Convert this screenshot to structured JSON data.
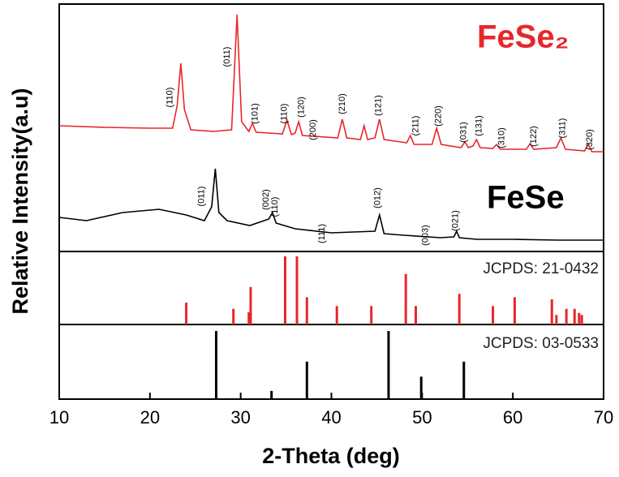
{
  "chart_data": [
    {
      "type": "line",
      "ylabel": "Relative Intensity(a.u)",
      "xlim": [
        10,
        70
      ],
      "ylim": [
        0,
        305
      ],
      "series": [
        {
          "name": "FeSe₂",
          "color": "#e8262a",
          "x": [
            10,
            15,
            20,
            22.5,
            23.0,
            23.4,
            23.8,
            24.5,
            27,
            29.0,
            29.6,
            30.1,
            30.9,
            31.3,
            31.7,
            34.6,
            35.1,
            35.6,
            36.0,
            36.4,
            36.8,
            40.7,
            41.2,
            41.7,
            43.2,
            43.6,
            44.0,
            44.8,
            45.3,
            45.8,
            48.3,
            48.7,
            49.1,
            51.1,
            51.6,
            52.1,
            54.3,
            54.7,
            55.1,
            55.6,
            56.0,
            56.4,
            57.8,
            58.2,
            58.6,
            61.5,
            61.9,
            62.3,
            64.8,
            65.3,
            65.8,
            67.9,
            68.3,
            68.7,
            70
          ],
          "values": [
            155,
            153,
            152,
            152,
            180,
            232,
            175,
            150,
            148,
            150,
            292,
            160,
            148,
            158,
            147,
            145,
            162,
            144,
            146,
            160,
            143,
            140,
            163,
            140,
            138,
            155,
            138,
            140,
            163,
            138,
            134,
            143,
            132,
            132,
            152,
            132,
            128,
            135,
            128,
            130,
            138,
            128,
            127,
            132,
            126,
            126,
            133,
            126,
            128,
            140,
            126,
            124,
            132,
            123,
            123
          ]
        },
        {
          "name": "FeSe",
          "color": "#000000",
          "x": [
            10,
            13,
            17,
            21,
            24,
            26,
            26.8,
            27.2,
            27.6,
            28.5,
            31,
            33.1,
            33.5,
            33.9,
            36,
            40,
            44.8,
            45.3,
            45.8,
            48,
            52,
            53.5,
            53.8,
            54.1,
            56,
            60,
            65,
            70
          ],
          "values": [
            42,
            38,
            48,
            52,
            45,
            38,
            55,
            102,
            48,
            38,
            32,
            40,
            48,
            35,
            28,
            23,
            25,
            45,
            22,
            20,
            17,
            18,
            25,
            17,
            15,
            15,
            14,
            14
          ]
        }
      ],
      "annotations": [
        {
          "text": "(110)",
          "x": 22.2,
          "y": 190
        },
        {
          "text": "(011)",
          "x": 28.5,
          "y": 240
        },
        {
          "text": "(101)",
          "x": 31.6,
          "y": 170
        },
        {
          "text": "(110)",
          "x": 34.8,
          "y": 170
        },
        {
          "text": "(120)",
          "x": 36.7,
          "y": 178
        },
        {
          "text": "(200)",
          "x": 38.0,
          "y": 150
        },
        {
          "text": "(210)",
          "x": 41.2,
          "y": 182
        },
        {
          "text": "(121)",
          "x": 45.2,
          "y": 180
        },
        {
          "text": "(211)",
          "x": 49.3,
          "y": 155
        },
        {
          "text": "(220)",
          "x": 51.8,
          "y": 167
        },
        {
          "text": "(031)",
          "x": 54.6,
          "y": 147
        },
        {
          "text": "(131)",
          "x": 56.3,
          "y": 155
        },
        {
          "text": "(310)",
          "x": 58.8,
          "y": 140
        },
        {
          "text": "(122)",
          "x": 62.3,
          "y": 142
        },
        {
          "text": "(311)",
          "x": 65.5,
          "y": 152
        },
        {
          "text": "(320)",
          "x": 68.5,
          "y": 138
        },
        {
          "text": "(011)",
          "x": 25.7,
          "y": 68
        },
        {
          "text": "(002)",
          "x": 32.8,
          "y": 64
        },
        {
          "text": "(110)",
          "x": 33.8,
          "y": 55
        },
        {
          "text": "(111)",
          "x": 39.0,
          "y": 22
        },
        {
          "text": "(012)",
          "x": 45.1,
          "y": 66
        },
        {
          "text": "(003)",
          "x": 50.4,
          "y": 20
        },
        {
          "text": "(021)",
          "x": 53.7,
          "y": 38
        }
      ]
    },
    {
      "type": "stem",
      "name": "JCPDS: 21-0432",
      "color": "#e8262a",
      "xlim": [
        10,
        70
      ],
      "ylim": [
        0,
        100
      ],
      "x": [
        24.0,
        29.2,
        30.9,
        31.1,
        34.9,
        36.2,
        37.3,
        40.6,
        44.4,
        48.2,
        49.3,
        54.1,
        57.8,
        60.2,
        64.3,
        64.8,
        65.9,
        66.8,
        67.3,
        67.6
      ],
      "values": [
        32,
        23,
        18,
        55,
        100,
        100,
        40,
        27,
        27,
        74,
        27,
        45,
        27,
        40,
        37,
        14,
        23,
        23,
        17,
        14
      ]
    },
    {
      "type": "stem",
      "name": "JCPDS: 03-0533",
      "color": "#000000",
      "xlim": [
        10,
        70
      ],
      "ylim": [
        0,
        100
      ],
      "xlabel": "2-Theta (deg)",
      "xticks": [
        10,
        20,
        30,
        40,
        50,
        60,
        70
      ],
      "x": [
        27.3,
        33.4,
        37.3,
        46.3,
        49.9,
        54.6
      ],
      "values": [
        100,
        12,
        55,
        100,
        33,
        55
      ]
    }
  ]
}
